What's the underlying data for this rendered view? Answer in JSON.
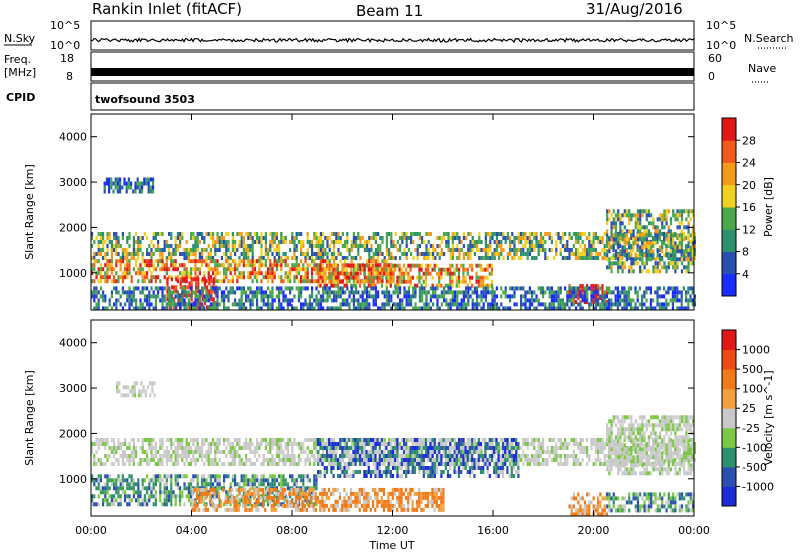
{
  "header": {
    "station": "Rankin Inlet (fitACF)",
    "beam": "Beam 11",
    "date": "31/Aug/2016"
  },
  "strip_nsky": {
    "label": "N.Sky",
    "ytick_top": "10^5",
    "ytick_bot": "10^0",
    "right_label": "N.Search",
    "rtick_top": "10^5",
    "rtick_bot": "10^0",
    "right_style": "dotted"
  },
  "strip_freq": {
    "label_line1": "Freq.",
    "label_line2": "[MHz]",
    "ytick_top": "18",
    "ytick_bot": "8",
    "rtick_top": "60",
    "rtick_bot": "0",
    "right_label": "Nave",
    "right_style": "dotted"
  },
  "strip_cpid": {
    "label": "CPID",
    "value": "twofsound 3503"
  },
  "chart_data": [
    {
      "type": "heatmap",
      "name": "power",
      "ylabel": "Slant Range [km]",
      "xlabel": "",
      "y_ticks": [
        "1000",
        "2000",
        "3000",
        "4000"
      ],
      "y_tick_values": [
        1000,
        2000,
        3000,
        4000
      ],
      "ylim": [
        180,
        4500
      ],
      "xlim": [
        0,
        24
      ],
      "colorbar": {
        "label": "Power [dB]",
        "ticks": [
          "4",
          "8",
          "12",
          "16",
          "20",
          "24",
          "28"
        ],
        "colors": [
          "#1a2bff",
          "#2a4fb0",
          "#2d8f6e",
          "#4aa84a",
          "#f0d020",
          "#f39a1a",
          "#f05a1a",
          "#e21818"
        ]
      },
      "bands": [
        {
          "t0": 0.0,
          "t1": 24.0,
          "r0": 1300,
          "r1": 1900,
          "level": "mid"
        },
        {
          "t0": 0.0,
          "t1": 12.0,
          "r0": 800,
          "r1": 1300,
          "level": "high"
        },
        {
          "t0": 3.0,
          "t1": 5.0,
          "r0": 200,
          "r1": 900,
          "level": "max"
        },
        {
          "t0": 9.0,
          "t1": 16.0,
          "r0": 700,
          "r1": 1200,
          "level": "high"
        },
        {
          "t0": 19.0,
          "t1": 20.5,
          "r0": 350,
          "r1": 750,
          "level": "max"
        },
        {
          "t0": 0.0,
          "t1": 24.0,
          "r0": 200,
          "r1": 700,
          "level": "low"
        },
        {
          "t0": 0.5,
          "t1": 2.5,
          "r0": 2800,
          "r1": 3100,
          "level": "low"
        },
        {
          "t0": 20.5,
          "t1": 24.0,
          "r0": 1000,
          "r1": 2400,
          "level": "mid"
        }
      ]
    },
    {
      "type": "heatmap",
      "name": "velocity",
      "ylabel": "Slant Range [km]",
      "xlabel": "Time UT",
      "y_ticks": [
        "1000",
        "2000",
        "3000",
        "4000"
      ],
      "y_tick_values": [
        1000,
        2000,
        3000,
        4000
      ],
      "ylim": [
        180,
        4500
      ],
      "xlim": [
        0,
        24
      ],
      "colorbar": {
        "label": "Velocity [m s^-1]",
        "ticks": [
          "1000",
          "500",
          "100",
          "25",
          "-25",
          "-100",
          "-500",
          "-1000"
        ],
        "colors": [
          "#1a2bd8",
          "#2a4fb0",
          "#2d8f6e",
          "#7ac843",
          "#c8c8c8",
          "#f0a040",
          "#f07a1a",
          "#f04a14",
          "#e21818"
        ]
      },
      "bands": [
        {
          "t0": 0.0,
          "t1": 24.0,
          "r0": 1300,
          "r1": 1900,
          "level": "grey"
        },
        {
          "t0": 0.0,
          "t1": 9.0,
          "r0": 400,
          "r1": 1100,
          "level": "green"
        },
        {
          "t0": 9.0,
          "t1": 17.0,
          "r0": 1100,
          "r1": 1900,
          "level": "blue"
        },
        {
          "t0": 19.0,
          "t1": 20.5,
          "r0": 200,
          "r1": 700,
          "level": "orange"
        },
        {
          "t0": 4.0,
          "t1": 14.0,
          "r0": 300,
          "r1": 800,
          "level": "orange"
        },
        {
          "t0": 20.5,
          "t1": 24.0,
          "r0": 300,
          "r1": 700,
          "level": "green"
        },
        {
          "t0": 1.0,
          "t1": 2.5,
          "r0": 2850,
          "r1": 3150,
          "level": "grey"
        },
        {
          "t0": 20.5,
          "t1": 24.0,
          "r0": 1100,
          "r1": 2400,
          "level": "grey"
        }
      ]
    }
  ],
  "x_axis": {
    "label": "Time UT",
    "ticks": [
      "00:00",
      "04:00",
      "08:00",
      "12:00",
      "16:00",
      "20:00",
      "00:00"
    ],
    "tick_hours": [
      0,
      4,
      8,
      12,
      16,
      20,
      24
    ]
  }
}
